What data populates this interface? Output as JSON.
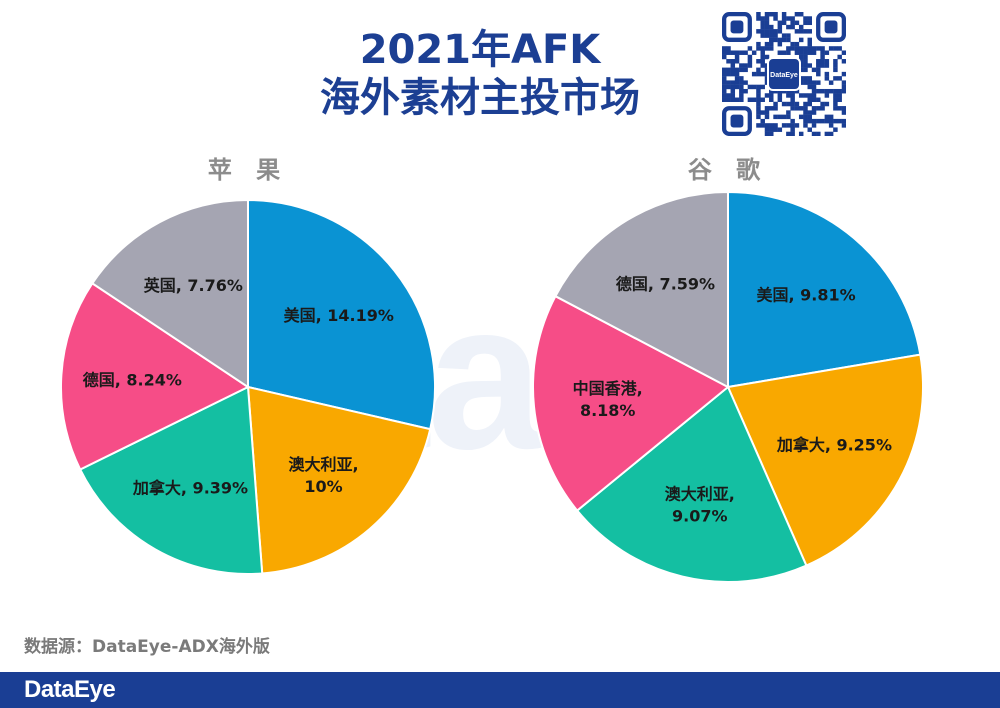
{
  "title": {
    "line1": "2021年AFK",
    "line2": "海外素材主投市场"
  },
  "watermark": "DataEye",
  "qr": {
    "badge": "DataEye"
  },
  "source_label": "数据源：DataEye-ADX海外版",
  "footer": {
    "logo": "DataEye",
    "background": "#1a3e94"
  },
  "chart_data": [
    {
      "type": "pie",
      "title": "苹 果",
      "slices": [
        {
          "label": "美国",
          "value": 14.19,
          "text": "美国, 14.19%",
          "color": "#0a93d3"
        },
        {
          "label": "澳大利亚",
          "value": 10,
          "text": "澳大利亚,\n10%",
          "color": "#f9a800"
        },
        {
          "label": "加拿大",
          "value": 9.39,
          "text": "加拿大, 9.39%",
          "color": "#14bfa2"
        },
        {
          "label": "德国",
          "value": 8.24,
          "text": "德国, 8.24%",
          "color": "#f64d87"
        },
        {
          "label": "英国",
          "value": 7.76,
          "text": "英国, 7.76%",
          "color": "#a5a5b2"
        }
      ]
    },
    {
      "type": "pie",
      "title": "谷 歌",
      "slices": [
        {
          "label": "美国",
          "value": 9.81,
          "text": "美国, 9.81%",
          "color": "#0a93d3"
        },
        {
          "label": "加拿大",
          "value": 9.25,
          "text": "加拿大, 9.25%",
          "color": "#f9a800"
        },
        {
          "label": "澳大利亚",
          "value": 9.07,
          "text": "澳大利亚,\n9.07%",
          "color": "#14bfa2"
        },
        {
          "label": "中国香港",
          "value": 8.18,
          "text": "中国香港,\n8.18%",
          "color": "#f64d87"
        },
        {
          "label": "德国",
          "value": 7.59,
          "text": "德国, 7.59%",
          "color": "#a5a5b2"
        }
      ]
    }
  ]
}
